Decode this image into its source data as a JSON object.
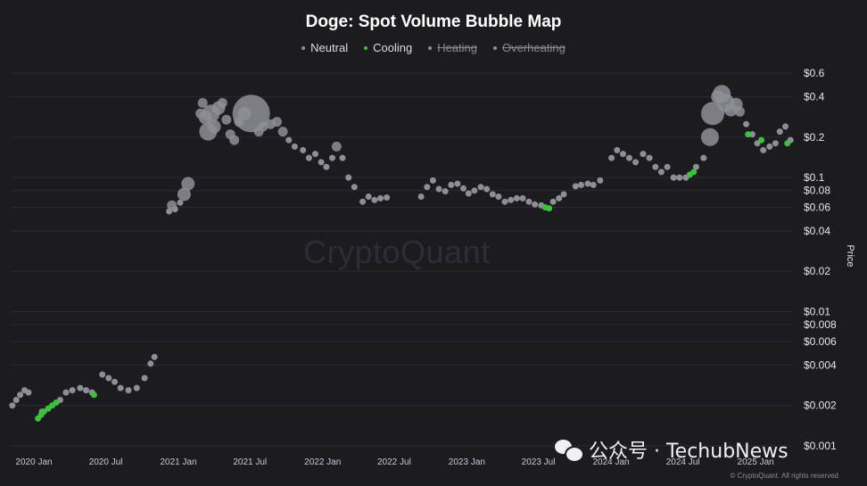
{
  "chart_data": {
    "type": "scatter",
    "title": "Doge: Spot Volume Bubble Map",
    "ylabel": "Price",
    "xlabel": "",
    "y_scale": "log",
    "ylim": [
      0.001,
      0.6
    ],
    "y_ticks": [
      {
        "value": 0.6,
        "label": "$0.6"
      },
      {
        "value": 0.4,
        "label": "$0.4"
      },
      {
        "value": 0.2,
        "label": "$0.2"
      },
      {
        "value": 0.1,
        "label": "$0.1"
      },
      {
        "value": 0.08,
        "label": "$0.08"
      },
      {
        "value": 0.06,
        "label": "$0.06"
      },
      {
        "value": 0.04,
        "label": "$0.04"
      },
      {
        "value": 0.02,
        "label": "$0.02"
      },
      {
        "value": 0.01,
        "label": "$0.01"
      },
      {
        "value": 0.008,
        "label": "$0.008"
      },
      {
        "value": 0.006,
        "label": "$0.006"
      },
      {
        "value": 0.004,
        "label": "$0.004"
      },
      {
        "value": 0.002,
        "label": "$0.002"
      },
      {
        "value": 0.001,
        "label": "$0.001"
      }
    ],
    "xlim": [
      "2020-01-01",
      "2025-06-01"
    ],
    "x_ticks": [
      {
        "value": "2020-01-01",
        "label": "2020 Jan"
      },
      {
        "value": "2020-07-01",
        "label": "2020 Jul"
      },
      {
        "value": "2021-01-01",
        "label": "2021 Jan"
      },
      {
        "value": "2021-07-01",
        "label": "2021 Jul"
      },
      {
        "value": "2022-01-01",
        "label": "2022 Jan"
      },
      {
        "value": "2022-07-01",
        "label": "2022 Jul"
      },
      {
        "value": "2023-01-01",
        "label": "2023 Jan"
      },
      {
        "value": "2023-07-01",
        "label": "2023 Jul"
      },
      {
        "value": "2024-01-01",
        "label": "2024 Jan"
      },
      {
        "value": "2024-07-01",
        "label": "2024 Jul"
      },
      {
        "value": "2025-01-01",
        "label": "2025 Jan"
      }
    ],
    "legend": {
      "placement": "top-center",
      "items": [
        {
          "label": "Neutral",
          "color": "#8e8e96",
          "active": true
        },
        {
          "label": "Cooling",
          "color": "#3fbf3f",
          "active": true
        },
        {
          "label": "Heating",
          "color": "#8e8e96",
          "active": false
        },
        {
          "label": "Overheating",
          "color": "#8e8e96",
          "active": false
        }
      ]
    },
    "grid": true,
    "series": [
      {
        "name": "Neutral",
        "color": "#8e8e96",
        "points": [
          {
            "x": "2020-01-05",
            "y": 0.002,
            "v": 1
          },
          {
            "x": "2020-01-15",
            "y": 0.0022,
            "v": 1
          },
          {
            "x": "2020-01-25",
            "y": 0.0024,
            "v": 1
          },
          {
            "x": "2020-02-05",
            "y": 0.0026,
            "v": 1
          },
          {
            "x": "2020-02-15",
            "y": 0.0025,
            "v": 1
          },
          {
            "x": "2020-03-20",
            "y": 0.0018,
            "v": 1
          },
          {
            "x": "2020-05-05",
            "y": 0.0022,
            "v": 1
          },
          {
            "x": "2020-05-20",
            "y": 0.0025,
            "v": 1
          },
          {
            "x": "2020-06-05",
            "y": 0.0026,
            "v": 1
          },
          {
            "x": "2020-06-25",
            "y": 0.0027,
            "v": 1
          },
          {
            "x": "2020-07-10",
            "y": 0.0026,
            "v": 1
          },
          {
            "x": "2020-07-25",
            "y": 0.0025,
            "v": 1
          },
          {
            "x": "2020-08-20",
            "y": 0.0034,
            "v": 1
          },
          {
            "x": "2020-09-05",
            "y": 0.0032,
            "v": 1
          },
          {
            "x": "2020-09-20",
            "y": 0.003,
            "v": 1
          },
          {
            "x": "2020-10-05",
            "y": 0.0027,
            "v": 1
          },
          {
            "x": "2020-10-25",
            "y": 0.0026,
            "v": 1
          },
          {
            "x": "2020-11-15",
            "y": 0.0027,
            "v": 1
          },
          {
            "x": "2020-12-05",
            "y": 0.0032,
            "v": 1
          },
          {
            "x": "2020-12-20",
            "y": 0.0041,
            "v": 1
          },
          {
            "x": "2020-12-30",
            "y": 0.0046,
            "v": 1
          },
          {
            "x": "2021-02-05",
            "y": 0.056,
            "v": 1
          },
          {
            "x": "2021-02-12",
            "y": 0.062,
            "v": 2
          },
          {
            "x": "2021-02-20",
            "y": 0.058,
            "v": 1
          },
          {
            "x": "2021-03-05",
            "y": 0.065,
            "v": 1
          },
          {
            "x": "2021-03-15",
            "y": 0.075,
            "v": 3
          },
          {
            "x": "2021-03-25",
            "y": 0.09,
            "v": 3
          },
          {
            "x": "2021-04-25",
            "y": 0.3,
            "v": 2
          },
          {
            "x": "2021-05-01",
            "y": 0.36,
            "v": 2
          },
          {
            "x": "2021-05-08",
            "y": 0.28,
            "v": 3
          },
          {
            "x": "2021-05-15",
            "y": 0.22,
            "v": 4
          },
          {
            "x": "2021-05-22",
            "y": 0.3,
            "v": 4
          },
          {
            "x": "2021-05-30",
            "y": 0.24,
            "v": 3
          },
          {
            "x": "2021-06-10",
            "y": 0.33,
            "v": 3
          },
          {
            "x": "2021-06-20",
            "y": 0.36,
            "v": 2
          },
          {
            "x": "2021-06-30",
            "y": 0.27,
            "v": 2
          },
          {
            "x": "2021-07-10",
            "y": 0.21,
            "v": 2
          },
          {
            "x": "2021-07-20",
            "y": 0.19,
            "v": 2
          },
          {
            "x": "2021-08-01",
            "y": 0.26,
            "v": 2
          },
          {
            "x": "2021-08-15",
            "y": 0.3,
            "v": 3
          },
          {
            "x": "2021-09-01",
            "y": 0.3,
            "v": 9
          },
          {
            "x": "2021-09-20",
            "y": 0.22,
            "v": 2
          },
          {
            "x": "2021-10-01",
            "y": 0.24,
            "v": 2
          },
          {
            "x": "2021-10-20",
            "y": 0.25,
            "v": 2
          },
          {
            "x": "2021-11-05",
            "y": 0.26,
            "v": 2
          },
          {
            "x": "2021-11-20",
            "y": 0.22,
            "v": 2
          },
          {
            "x": "2021-12-05",
            "y": 0.19,
            "v": 1
          },
          {
            "x": "2021-12-20",
            "y": 0.17,
            "v": 1
          },
          {
            "x": "2022-01-10",
            "y": 0.16,
            "v": 1
          },
          {
            "x": "2022-01-25",
            "y": 0.14,
            "v": 1
          },
          {
            "x": "2022-02-10",
            "y": 0.15,
            "v": 1
          },
          {
            "x": "2022-02-25",
            "y": 0.13,
            "v": 1
          },
          {
            "x": "2022-03-10",
            "y": 0.12,
            "v": 1
          },
          {
            "x": "2022-03-25",
            "y": 0.14,
            "v": 1
          },
          {
            "x": "2022-04-05",
            "y": 0.17,
            "v": 2
          },
          {
            "x": "2022-04-20",
            "y": 0.14,
            "v": 1
          },
          {
            "x": "2022-05-05",
            "y": 0.1,
            "v": 1
          },
          {
            "x": "2022-05-20",
            "y": 0.085,
            "v": 1
          },
          {
            "x": "2022-06-10",
            "y": 0.066,
            "v": 1
          },
          {
            "x": "2022-06-25",
            "y": 0.072,
            "v": 1
          },
          {
            "x": "2022-07-10",
            "y": 0.068,
            "v": 1
          },
          {
            "x": "2022-07-25",
            "y": 0.07,
            "v": 1
          },
          {
            "x": "2022-08-10",
            "y": 0.071,
            "v": 1
          },
          {
            "x": "2022-11-05",
            "y": 0.072,
            "v": 1
          },
          {
            "x": "2022-11-20",
            "y": 0.085,
            "v": 1
          },
          {
            "x": "2022-12-05",
            "y": 0.095,
            "v": 1
          },
          {
            "x": "2022-12-20",
            "y": 0.082,
            "v": 1
          },
          {
            "x": "2023-01-05",
            "y": 0.079,
            "v": 1
          },
          {
            "x": "2023-01-20",
            "y": 0.088,
            "v": 1
          },
          {
            "x": "2023-02-05",
            "y": 0.09,
            "v": 1
          },
          {
            "x": "2023-02-20",
            "y": 0.083,
            "v": 1
          },
          {
            "x": "2023-03-05",
            "y": 0.076,
            "v": 1
          },
          {
            "x": "2023-03-20",
            "y": 0.08,
            "v": 1
          },
          {
            "x": "2023-04-05",
            "y": 0.085,
            "v": 1
          },
          {
            "x": "2023-04-20",
            "y": 0.082,
            "v": 1
          },
          {
            "x": "2023-05-05",
            "y": 0.075,
            "v": 1
          },
          {
            "x": "2023-05-20",
            "y": 0.072,
            "v": 1
          },
          {
            "x": "2023-06-05",
            "y": 0.066,
            "v": 1
          },
          {
            "x": "2023-06-20",
            "y": 0.068,
            "v": 1
          },
          {
            "x": "2023-07-05",
            "y": 0.07,
            "v": 1
          },
          {
            "x": "2023-07-20",
            "y": 0.07,
            "v": 1
          },
          {
            "x": "2023-08-05",
            "y": 0.066,
            "v": 1
          },
          {
            "x": "2023-08-20",
            "y": 0.063,
            "v": 1
          },
          {
            "x": "2023-09-05",
            "y": 0.062,
            "v": 1
          },
          {
            "x": "2023-10-05",
            "y": 0.066,
            "v": 1
          },
          {
            "x": "2023-10-20",
            "y": 0.07,
            "v": 1
          },
          {
            "x": "2023-11-01",
            "y": 0.075,
            "v": 1
          },
          {
            "x": "2023-12-01",
            "y": 0.086,
            "v": 1
          },
          {
            "x": "2023-12-15",
            "y": 0.088,
            "v": 1
          },
          {
            "x": "2024-01-01",
            "y": 0.09,
            "v": 1
          },
          {
            "x": "2024-01-15",
            "y": 0.088,
            "v": 1
          },
          {
            "x": "2024-02-01",
            "y": 0.095,
            "v": 1
          },
          {
            "x": "2024-03-01",
            "y": 0.14,
            "v": 1
          },
          {
            "x": "2024-03-15",
            "y": 0.16,
            "v": 1
          },
          {
            "x": "2024-03-30",
            "y": 0.15,
            "v": 1
          },
          {
            "x": "2024-04-15",
            "y": 0.14,
            "v": 1
          },
          {
            "x": "2024-05-01",
            "y": 0.13,
            "v": 1
          },
          {
            "x": "2024-05-20",
            "y": 0.15,
            "v": 1
          },
          {
            "x": "2024-06-05",
            "y": 0.14,
            "v": 1
          },
          {
            "x": "2024-06-20",
            "y": 0.12,
            "v": 1
          },
          {
            "x": "2024-07-05",
            "y": 0.11,
            "v": 1
          },
          {
            "x": "2024-07-20",
            "y": 0.12,
            "v": 1
          },
          {
            "x": "2024-08-05",
            "y": 0.1,
            "v": 1
          },
          {
            "x": "2024-08-20",
            "y": 0.1,
            "v": 1
          },
          {
            "x": "2024-09-05",
            "y": 0.1,
            "v": 1
          },
          {
            "x": "2024-10-01",
            "y": 0.12,
            "v": 1
          },
          {
            "x": "2024-10-20",
            "y": 0.14,
            "v": 1
          },
          {
            "x": "2024-11-05",
            "y": 0.2,
            "v": 4
          },
          {
            "x": "2024-11-12",
            "y": 0.3,
            "v": 5
          },
          {
            "x": "2024-11-25",
            "y": 0.4,
            "v": 3
          },
          {
            "x": "2024-12-05",
            "y": 0.42,
            "v": 4
          },
          {
            "x": "2024-12-15",
            "y": 0.36,
            "v": 4
          },
          {
            "x": "2024-12-28",
            "y": 0.32,
            "v": 3
          },
          {
            "x": "2025-01-10",
            "y": 0.35,
            "v": 3
          },
          {
            "x": "2025-01-20",
            "y": 0.31,
            "v": 2
          },
          {
            "x": "2025-02-05",
            "y": 0.25,
            "v": 1
          },
          {
            "x": "2025-02-20",
            "y": 0.21,
            "v": 1
          },
          {
            "x": "2025-03-05",
            "y": 0.18,
            "v": 1
          },
          {
            "x": "2025-03-20",
            "y": 0.16,
            "v": 1
          },
          {
            "x": "2025-04-05",
            "y": 0.17,
            "v": 1
          },
          {
            "x": "2025-04-20",
            "y": 0.18,
            "v": 1
          },
          {
            "x": "2025-05-01",
            "y": 0.22,
            "v": 1
          },
          {
            "x": "2025-05-15",
            "y": 0.24,
            "v": 1
          },
          {
            "x": "2025-05-28",
            "y": 0.19,
            "v": 1
          }
        ]
      },
      {
        "name": "Cooling",
        "color": "#3fbf3f",
        "points": [
          {
            "x": "2020-03-10",
            "y": 0.0016,
            "v": 1
          },
          {
            "x": "2020-03-18",
            "y": 0.0017,
            "v": 1
          },
          {
            "x": "2020-03-25",
            "y": 0.0018,
            "v": 1
          },
          {
            "x": "2020-04-05",
            "y": 0.0019,
            "v": 1
          },
          {
            "x": "2020-04-15",
            "y": 0.002,
            "v": 1
          },
          {
            "x": "2020-04-25",
            "y": 0.0021,
            "v": 1
          },
          {
            "x": "2020-07-30",
            "y": 0.0024,
            "v": 1
          },
          {
            "x": "2023-09-15",
            "y": 0.06,
            "v": 1
          },
          {
            "x": "2023-09-25",
            "y": 0.059,
            "v": 1
          },
          {
            "x": "2024-09-15",
            "y": 0.105,
            "v": 1
          },
          {
            "x": "2024-09-25",
            "y": 0.11,
            "v": 1
          },
          {
            "x": "2025-02-10",
            "y": 0.21,
            "v": 1
          },
          {
            "x": "2025-03-15",
            "y": 0.19,
            "v": 1
          },
          {
            "x": "2025-05-20",
            "y": 0.18,
            "v": 1
          }
        ]
      }
    ]
  },
  "watermark": "CryptoQuant",
  "credit": "© CryptoQuant. All rights reserved",
  "overlay_badge": "公众号 · TechubNews"
}
